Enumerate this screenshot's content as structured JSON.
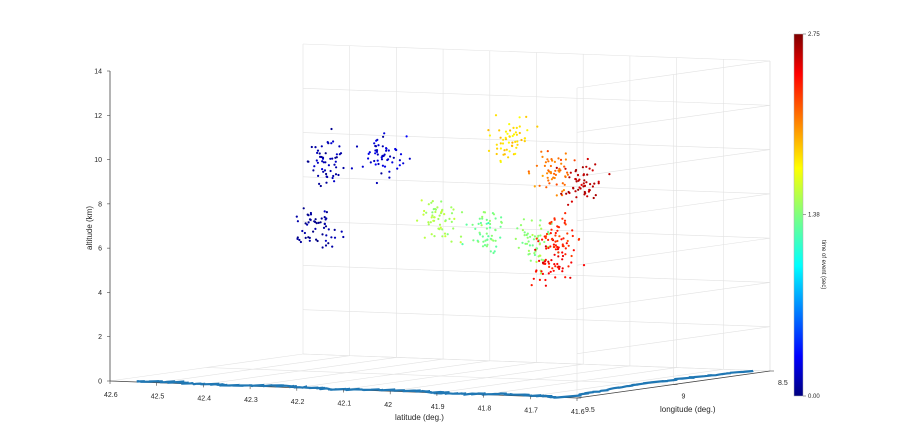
{
  "chart_data": {
    "type": "scatter",
    "title": "",
    "xlabel": "latitude (deg.)",
    "ylabel": "longitude (deg.)",
    "zlabel": "altitude (km)",
    "xlim": [
      41.6,
      42.6
    ],
    "ylim": [
      8.5,
      9.5
    ],
    "zlim": [
      0,
      14
    ],
    "x_ticks": [
      "42.6",
      "42.5",
      "42.4",
      "42.3",
      "42.2",
      "42.1",
      "42",
      "41.9",
      "41.8",
      "41.7",
      "41.6"
    ],
    "y_ticks": [
      "9.5",
      "9",
      "8.5"
    ],
    "z_ticks": [
      "0",
      "2",
      "4",
      "6",
      "8",
      "10",
      "12",
      "14"
    ],
    "grid": true,
    "colormap": "jet",
    "colorbar": {
      "label": "time of event (sec)",
      "min": 0.0,
      "max": 2.75,
      "ticks": [
        "0.00",
        "1.38",
        "2.75"
      ]
    },
    "coastline_color": "#1f77b4",
    "clusters": [
      {
        "lat": 42.35,
        "lon": 9.02,
        "alt": 6.5,
        "t": 0.08
      },
      {
        "lat": 42.34,
        "lon": 9.0,
        "alt": 9.6,
        "t": 0.12
      },
      {
        "lat": 42.18,
        "lon": 9.1,
        "alt": 10.0,
        "t": 0.2
      },
      {
        "lat": 42.08,
        "lon": 9.05,
        "alt": 7.2,
        "t": 1.5
      },
      {
        "lat": 41.98,
        "lon": 9.05,
        "alt": 6.6,
        "t": 1.35
      },
      {
        "lat": 41.9,
        "lon": 9.0,
        "alt": 6.0,
        "t": 1.4
      },
      {
        "lat": 41.92,
        "lon": 9.08,
        "alt": 11.0,
        "t": 1.8
      },
      {
        "lat": 41.85,
        "lon": 9.02,
        "alt": 9.5,
        "t": 2.1
      },
      {
        "lat": 41.8,
        "lon": 8.98,
        "alt": 9.0,
        "t": 2.6
      },
      {
        "lat": 41.85,
        "lon": 9.0,
        "alt": 6.5,
        "t": 2.3
      },
      {
        "lat": 41.88,
        "lon": 8.95,
        "alt": 5.2,
        "t": 2.4
      }
    ]
  }
}
